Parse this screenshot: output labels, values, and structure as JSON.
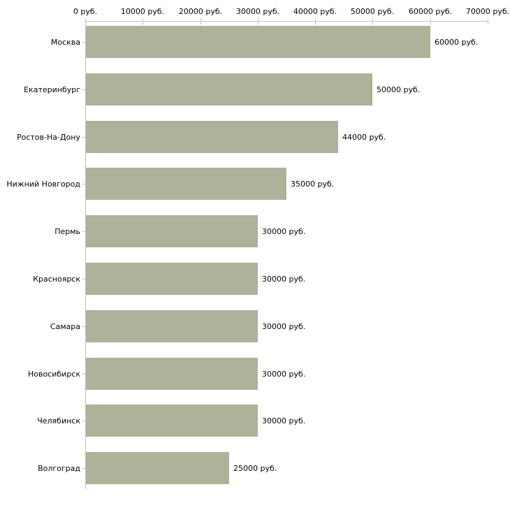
{
  "chart_data": {
    "type": "bar",
    "orientation": "horizontal",
    "title": "",
    "xlabel": "",
    "ylabel": "",
    "categories": [
      "Москва",
      "Екатеринбург",
      "Ростов-На-Дону",
      "Нижний Новгород",
      "Пермь",
      "Красноярск",
      "Самара",
      "Новосибирск",
      "Челябинск",
      "Волгоград"
    ],
    "values": [
      60000,
      50000,
      44000,
      35000,
      30000,
      30000,
      30000,
      30000,
      30000,
      25000
    ],
    "value_labels": [
      "60000 руб.",
      "50000 руб.",
      "44000 руб.",
      "35000 руб.",
      "30000 руб.",
      "30000 руб.",
      "30000 руб.",
      "30000 руб.",
      "30000 руб.",
      "25000 руб."
    ],
    "x_axis": {
      "min": 0,
      "max": 70000,
      "tick_values": [
        0,
        10000,
        20000,
        30000,
        40000,
        50000,
        60000,
        70000
      ],
      "tick_labels": [
        "0 руб.",
        "10000 руб.",
        "20000 руб.",
        "30000 руб.",
        "40000 руб.",
        "50000 руб.",
        "60000 руб.",
        "70000 руб."
      ],
      "position": "top"
    },
    "grid": false,
    "legend": false,
    "colors": {
      "bar": "#adb298",
      "axis_line": "#c0c0c0",
      "tick_mark": "#c6c7a2",
      "text": "#000000",
      "background": "#ffffff"
    }
  }
}
